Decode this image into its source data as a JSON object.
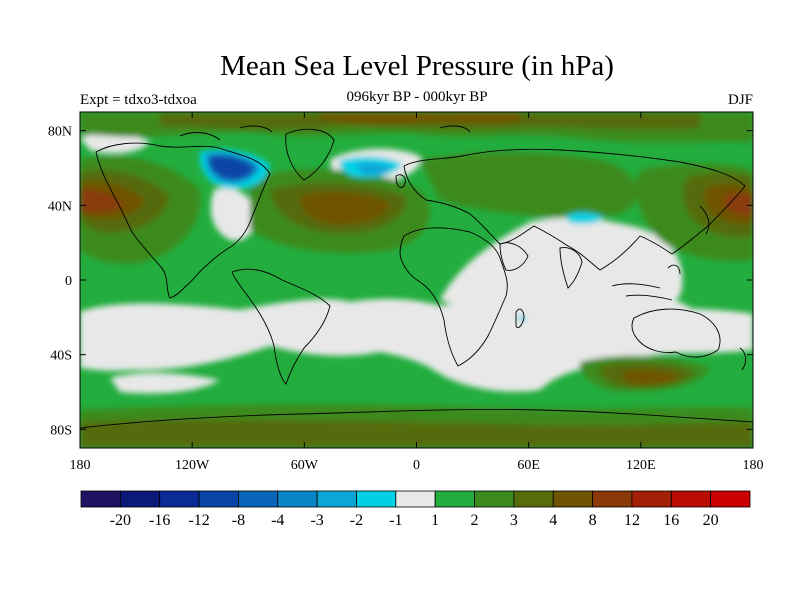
{
  "chart_data": {
    "type": "heatmap",
    "title": "Mean Sea Level Pressure (in hPa)",
    "subtitle": "096kyr BP - 000kyr BP",
    "left_label": "Expt = tdxo3-tdxoa",
    "right_label": "DJF",
    "x_ticks": [
      "180",
      "120W",
      "60W",
      "0",
      "60E",
      "120E",
      "180"
    ],
    "y_ticks": [
      "80N",
      "40N",
      "0",
      "40S",
      "80S"
    ],
    "x_range": [
      -180,
      180
    ],
    "y_range": [
      -90,
      90
    ],
    "colorbar": {
      "labels": [
        "-20",
        "-16",
        "-12",
        "-8",
        "-4",
        "-3",
        "-2",
        "-1",
        "1",
        "2",
        "3",
        "4",
        "8",
        "12",
        "16",
        "20"
      ],
      "colors": [
        "#1e1360",
        "#0b1a78",
        "#0a2a96",
        "#0a45a6",
        "#0a66b8",
        "#0a86c6",
        "#0aa6d6",
        "#00d2e4",
        "#e8e8e8",
        "#22ad3e",
        "#3c8a1e",
        "#556b0c",
        "#6f5405",
        "#8a3a08",
        "#a31f06",
        "#bb0c03",
        "#cc0000"
      ]
    }
  }
}
